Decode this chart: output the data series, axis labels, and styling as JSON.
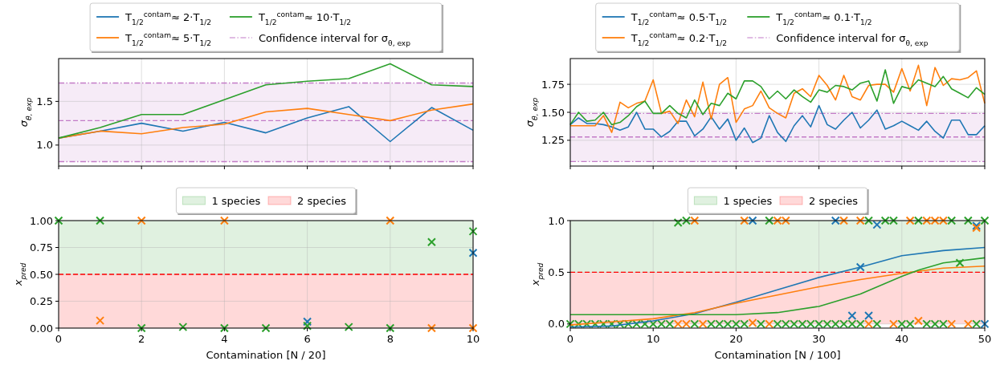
{
  "chart_data": [
    {
      "type": "line",
      "ylabel": "σ$_{θ, exp}$",
      "xlim": [
        0,
        10
      ],
      "xticks": [
        0,
        2,
        4,
        6,
        8,
        10
      ],
      "ylim": [
        0.76,
        1.99
      ],
      "yticks": [
        {
          "value": 1,
          "label": "1.0"
        },
        1.5
      ],
      "tick_labels": "y",
      "grid": true,
      "legend": "top",
      "marker": "none",
      "x": [
        0,
        1,
        2,
        3,
        4,
        5,
        6,
        7,
        8,
        9,
        10
      ],
      "series": [
        {
          "name": "T$_{1/2}$$^{contam}$≈ 2·T$_{1/2}$",
          "color": "#1f77b4",
          "values": [
            1.08,
            1.16,
            1.25,
            1.16,
            1.26,
            1.14,
            1.31,
            1.44,
            1.04,
            1.43,
            1.17
          ]
        },
        {
          "name": "T$_{1/2}$$^{contam}$≈ 5·T$_{1/2}$",
          "color": "#ff7f0e",
          "values": [
            1.08,
            1.16,
            1.13,
            1.2,
            1.24,
            1.38,
            1.42,
            1.35,
            1.28,
            1.4,
            1.47
          ]
        },
        {
          "name": "T$_{1/2}$$^{contam}$≈ 10·T$_{1/2}$",
          "color": "#2ca02c",
          "values": [
            1.08,
            1.2,
            1.35,
            1.35,
            1.52,
            1.69,
            1.73,
            1.76,
            1.93,
            1.69,
            1.67
          ]
        }
      ],
      "bands": [
        {
          "axis": "y",
          "from": 0.81,
          "to": 1.71,
          "color": "#c27bc7"
        }
      ],
      "ref_lines": [
        {
          "axis": "y",
          "value": 0.81,
          "label": "Confidence interval for σ$_{θ, exp}$",
          "color": "#c27bc7",
          "line_style": "dashdot"
        },
        {
          "axis": "y",
          "value": 1.71,
          "color": "#c27bc7",
          "line_style": "dashdot"
        },
        {
          "axis": "y",
          "value": 1.28,
          "color": "#c27bc7",
          "line_style": "dashed"
        }
      ]
    },
    {
      "type": "line",
      "ylabel": "σ$_{θ, exp}$",
      "xlim": [
        0,
        50
      ],
      "xticks": [
        0,
        10,
        20,
        30,
        40,
        50
      ],
      "ylim": [
        1.02,
        1.98
      ],
      "yticks": [
        1.25,
        {
          "value": 1.5,
          "label": "1.50"
        },
        1.75
      ],
      "tick_labels": "y",
      "grid": true,
      "legend": "top",
      "marker": "none",
      "x": [
        0,
        1,
        2,
        3,
        4,
        5,
        6,
        7,
        8,
        9,
        10,
        11,
        12,
        13,
        14,
        15,
        16,
        17,
        18,
        19,
        20,
        21,
        22,
        23,
        24,
        25,
        26,
        27,
        28,
        29,
        30,
        31,
        32,
        33,
        34,
        35,
        36,
        37,
        38,
        39,
        40,
        41,
        42,
        43,
        44,
        45,
        46,
        47,
        48,
        49,
        50
      ],
      "series": [
        {
          "name": "T$_{1/2}$$^{contam}$≈ 0.5·T$_{1/2}$",
          "color": "#1f77b4",
          "values": [
            1.39,
            1.45,
            1.4,
            1.4,
            1.39,
            1.37,
            1.34,
            1.37,
            1.5,
            1.35,
            1.35,
            1.28,
            1.33,
            1.42,
            1.42,
            1.29,
            1.35,
            1.46,
            1.35,
            1.44,
            1.25,
            1.36,
            1.23,
            1.27,
            1.47,
            1.32,
            1.24,
            1.38,
            1.47,
            1.37,
            1.56,
            1.39,
            1.35,
            1.43,
            1.5,
            1.36,
            1.43,
            1.52,
            1.35,
            1.38,
            1.42,
            1.38,
            1.34,
            1.42,
            1.33,
            1.27,
            1.43,
            1.43,
            1.3,
            1.3,
            1.38
          ]
        },
        {
          "name": "T$_{1/2}$$^{contam}$≈ 0.2·T$_{1/2}$",
          "color": "#ff7f0e",
          "values": [
            1.38,
            1.38,
            1.38,
            1.38,
            1.47,
            1.32,
            1.59,
            1.54,
            1.58,
            1.6,
            1.79,
            1.49,
            1.51,
            1.4,
            1.61,
            1.46,
            1.77,
            1.44,
            1.75,
            1.81,
            1.41,
            1.53,
            1.56,
            1.69,
            1.54,
            1.49,
            1.45,
            1.67,
            1.71,
            1.64,
            1.83,
            1.74,
            1.61,
            1.83,
            1.64,
            1.61,
            1.74,
            1.75,
            1.75,
            1.68,
            1.89,
            1.69,
            1.92,
            1.56,
            1.9,
            1.74,
            1.8,
            1.79,
            1.81,
            1.87,
            1.58
          ]
        },
        {
          "name": "T$_{1/2}$$^{contam}$≈ 0.1·T$_{1/2}$",
          "color": "#2ca02c",
          "values": [
            1.39,
            1.5,
            1.42,
            1.43,
            1.5,
            1.39,
            1.41,
            1.47,
            1.55,
            1.6,
            1.49,
            1.49,
            1.56,
            1.49,
            1.45,
            1.61,
            1.48,
            1.58,
            1.56,
            1.67,
            1.62,
            1.78,
            1.78,
            1.73,
            1.62,
            1.69,
            1.62,
            1.7,
            1.64,
            1.59,
            1.7,
            1.68,
            1.74,
            1.73,
            1.7,
            1.76,
            1.78,
            1.6,
            1.88,
            1.58,
            1.73,
            1.71,
            1.79,
            1.76,
            1.73,
            1.82,
            1.71,
            1.67,
            1.63,
            1.72,
            1.66
          ]
        }
      ],
      "bands": [
        {
          "axis": "y",
          "from": 1.06,
          "to": 1.49,
          "color": "#c27bc7"
        }
      ],
      "ref_lines": [
        {
          "axis": "y",
          "value": 1.06,
          "label": "Confidence interval for σ$_{θ, exp}$",
          "color": "#c27bc7",
          "line_style": "dashdot"
        },
        {
          "axis": "y",
          "value": 1.49,
          "color": "#c27bc7",
          "line_style": "dashdot"
        },
        {
          "axis": "y",
          "value": 1.28,
          "color": "#c27bc7",
          "line_style": "dashed"
        }
      ]
    },
    {
      "type": "scatter",
      "xlabel": "Contamination [N / 20]",
      "ylabel": "x$_{pred}$",
      "xlim": [
        0,
        10
      ],
      "xticks": [
        0,
        2,
        4,
        6,
        8,
        10
      ],
      "ylim": [
        0,
        1
      ],
      "yticks": [
        {
          "value": 0,
          "label": "0.00"
        },
        0.25,
        {
          "value": 0.5,
          "label": "0.50"
        },
        0.75,
        {
          "value": 1,
          "label": "1.00"
        }
      ],
      "grid": true,
      "legend": "top",
      "marker": "cross",
      "x": [
        0,
        1,
        2,
        3,
        4,
        5,
        6,
        7,
        8,
        9,
        10
      ],
      "series": [
        {
          "color": "#1f77b4",
          "values": [
            null,
            null,
            null,
            null,
            null,
            null,
            0.06,
            null,
            null,
            null,
            0.7
          ]
        },
        {
          "color": "#ff7f0e",
          "values": [
            null,
            0.07,
            1.0,
            null,
            1.0,
            null,
            null,
            null,
            1.0,
            0.0,
            0.0
          ]
        },
        {
          "color": "#2ca02c",
          "values": [
            1.0,
            1.0,
            0.0,
            0.01,
            0.0,
            0.0,
            0.02,
            0.01,
            0.0,
            0.8,
            0.9
          ]
        }
      ],
      "bands": [
        {
          "axis": "y",
          "from": 0.5,
          "to": 1,
          "label": "1 species",
          "color": "#2ca02c"
        },
        {
          "axis": "y",
          "from": 0,
          "to": 0.5,
          "label": "2 species",
          "color": "#ff0000"
        }
      ],
      "ref_lines": [
        {
          "axis": "y",
          "value": 0.5,
          "color": "#ff0000",
          "line_style": "dashed"
        }
      ]
    },
    {
      "type": "scatter",
      "xlabel": "Contamination [N / 100]",
      "ylabel": "x$_{pred}$",
      "xlim": [
        0,
        50
      ],
      "xticks": [
        0,
        10,
        20,
        30,
        40,
        50
      ],
      "ylim": [
        -0.04,
        1
      ],
      "yticks": [
        {
          "value": 0,
          "label": "0.0"
        },
        0.5,
        {
          "value": 1,
          "label": "1.0"
        }
      ],
      "grid": true,
      "legend": "top",
      "marker": "cross",
      "x": [
        0,
        1,
        2,
        3,
        4,
        5,
        6,
        7,
        8,
        9,
        10,
        11,
        12,
        13,
        14,
        15,
        16,
        17,
        18,
        19,
        20,
        21,
        22,
        23,
        24,
        25,
        26,
        27,
        28,
        29,
        30,
        31,
        32,
        33,
        34,
        35,
        36,
        37,
        38,
        39,
        40,
        41,
        42,
        43,
        44,
        45,
        46,
        47,
        48,
        49,
        50
      ],
      "series": [
        {
          "color": "#1f77b4",
          "values": [
            null,
            null,
            null,
            null,
            null,
            null,
            null,
            null,
            null,
            null,
            null,
            null,
            null,
            null,
            null,
            null,
            null,
            null,
            null,
            null,
            null,
            null,
            1.0,
            null,
            null,
            null,
            null,
            null,
            null,
            null,
            null,
            null,
            1.0,
            null,
            0.08,
            0.55,
            0.08,
            0.96,
            null,
            null,
            null,
            null,
            null,
            null,
            null,
            null,
            null,
            null,
            null,
            0.95,
            0.0
          ]
        },
        {
          "color": "#ff7f0e",
          "values": [
            null,
            null,
            null,
            null,
            null,
            null,
            null,
            null,
            null,
            null,
            null,
            null,
            null,
            0,
            0,
            1.0,
            0,
            null,
            null,
            null,
            null,
            1.0,
            0.01,
            null,
            0,
            1.0,
            1.0,
            null,
            null,
            null,
            null,
            null,
            null,
            1.0,
            null,
            1.0,
            0,
            null,
            null,
            0,
            null,
            1.0,
            0.03,
            1.0,
            1.0,
            1.0,
            0,
            null,
            0,
            0.93,
            null
          ]
        },
        {
          "color": "#2ca02c",
          "values": [
            0,
            0,
            0,
            0,
            0,
            0,
            0,
            0,
            0,
            0,
            0,
            0,
            0,
            0.98,
            1.0,
            0,
            null,
            0,
            0,
            0,
            0,
            0,
            null,
            0,
            1.0,
            0,
            0,
            0,
            0,
            0,
            0,
            0,
            0,
            0,
            0,
            0,
            1.0,
            0,
            1.0,
            1.0,
            0,
            0,
            1.0,
            0,
            0,
            0,
            1.0,
            0.59,
            1.0,
            0,
            1.0
          ]
        },
        {
          "type": "line",
          "marker": "none",
          "color": "#1f77b4",
          "x": [
            0,
            5,
            10,
            15,
            20,
            25,
            30,
            35,
            40,
            45,
            50
          ],
          "values": [
            -0.03,
            -0.02,
            0.03,
            0.1,
            0.21,
            0.33,
            0.45,
            0.55,
            0.66,
            0.71,
            0.74
          ]
        },
        {
          "type": "line",
          "marker": "none",
          "color": "#ff7f0e",
          "x": [
            0,
            5,
            10,
            15,
            20,
            25,
            30,
            35,
            40,
            45,
            50
          ],
          "values": [
            -0.01,
            0.02,
            0.05,
            0.11,
            0.2,
            0.28,
            0.36,
            0.43,
            0.49,
            0.54,
            0.56
          ]
        },
        {
          "type": "line",
          "marker": "none",
          "color": "#2ca02c",
          "x": [
            0,
            10,
            20,
            25,
            30,
            35,
            40,
            42,
            45,
            50
          ],
          "values": [
            0.09,
            0.09,
            0.09,
            0.11,
            0.17,
            0.29,
            0.46,
            0.52,
            0.59,
            0.64
          ]
        }
      ],
      "bands": [
        {
          "axis": "y",
          "from": 0.5,
          "to": 1,
          "label": "1 species",
          "color": "#2ca02c"
        },
        {
          "axis": "y",
          "from": 0,
          "to": 0.5,
          "label": "2 species",
          "color": "#ff0000"
        }
      ],
      "ref_lines": [
        {
          "axis": "y",
          "value": 0.5,
          "color": "#ff0000",
          "line_style": "dashed"
        }
      ]
    }
  ]
}
